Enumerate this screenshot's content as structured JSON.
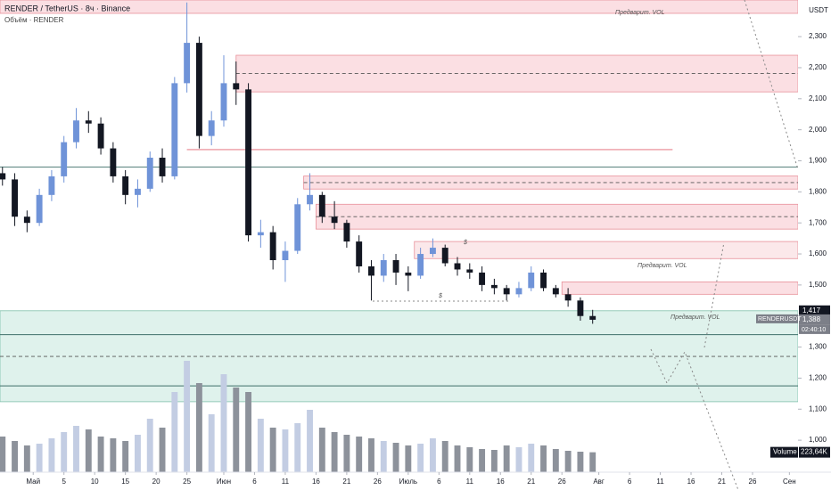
{
  "chart_data": {
    "type": "candlestick",
    "title": "RENDER / TetherUS · 8ч · Binance",
    "subtitle": "Объём · RENDER",
    "currency": "USDT",
    "x": [
      -5,
      -3,
      -1,
      1,
      3,
      5,
      7,
      9,
      11,
      13,
      15,
      17,
      19,
      21,
      23,
      25,
      27,
      29,
      31,
      33,
      35,
      37,
      39,
      41,
      43,
      45,
      47,
      49,
      51,
      53,
      55,
      57,
      59,
      61,
      63,
      65,
      67,
      69,
      71,
      73,
      75,
      77,
      79,
      81,
      83,
      85,
      87,
      89,
      91
    ],
    "open": [
      1860,
      1840,
      1720,
      1700,
      1790,
      1850,
      1960,
      2030,
      2020,
      1940,
      1850,
      1790,
      1810,
      1910,
      1850,
      2150,
      2280,
      1980,
      2030,
      2150,
      2130,
      1660,
      1670,
      1580,
      1610,
      1760,
      1790,
      1720,
      1700,
      1640,
      1560,
      1530,
      1580,
      1540,
      1530,
      1600,
      1620,
      1570,
      1550,
      1540,
      1500,
      1490,
      1470,
      1490,
      1540,
      1490,
      1470,
      1450,
      1400
    ],
    "high": [
      1880,
      1860,
      1740,
      1810,
      1870,
      1980,
      2070,
      2060,
      2040,
      1960,
      1870,
      1840,
      1930,
      1940,
      2170,
      2410,
      2300,
      2060,
      2240,
      2220,
      2150,
      1710,
      1690,
      1640,
      1780,
      1860,
      1800,
      1770,
      1710,
      1660,
      1580,
      1600,
      1600,
      1560,
      1620,
      1650,
      1630,
      1590,
      1570,
      1560,
      1520,
      1500,
      1510,
      1560,
      1550,
      1500,
      1490,
      1460,
      1420
    ],
    "low": [
      1820,
      1690,
      1670,
      1690,
      1770,
      1830,
      1940,
      1990,
      1920,
      1830,
      1760,
      1750,
      1800,
      1830,
      1840,
      2120,
      1940,
      1950,
      2010,
      2080,
      1640,
      1620,
      1550,
      1510,
      1600,
      1740,
      1700,
      1680,
      1620,
      1540,
      1450,
      1510,
      1500,
      1480,
      1520,
      1590,
      1560,
      1530,
      1520,
      1480,
      1470,
      1450,
      1460,
      1480,
      1480,
      1460,
      1430,
      1385,
      1375
    ],
    "close": [
      1840,
      1720,
      1700,
      1790,
      1850,
      1960,
      2030,
      2020,
      1940,
      1850,
      1790,
      1810,
      1910,
      1850,
      2150,
      2280,
      1980,
      2030,
      2150,
      2130,
      1660,
      1670,
      1580,
      1610,
      1760,
      1790,
      1720,
      1700,
      1640,
      1560,
      1530,
      1580,
      1540,
      1530,
      1600,
      1620,
      1570,
      1550,
      1540,
      1500,
      1490,
      1470,
      1490,
      1540,
      1490,
      1470,
      1450,
      1400,
      1388
    ],
    "volume": [
      400,
      350,
      300,
      320,
      380,
      450,
      520,
      480,
      400,
      380,
      350,
      420,
      600,
      500,
      900,
      1250,
      1000,
      650,
      1100,
      950,
      900,
      600,
      500,
      480,
      550,
      700,
      500,
      450,
      420,
      400,
      380,
      350,
      330,
      300,
      320,
      380,
      350,
      300,
      280,
      260,
      250,
      300,
      280,
      320,
      300,
      260,
      240,
      230,
      223.64
    ],
    "volume_ylim": [
      0,
      1500
    ],
    "volume_name": "Volume",
    "volume_last": {
      "value": 223.64,
      "label": "223,64K"
    },
    "up_color": "#6f93d8",
    "down_color": "#131722",
    "volume_up_color": "#c3cde3",
    "volume_down_color": "#8d929b",
    "xlim": [
      -5.4,
      124.4
    ],
    "xticks": [
      {
        "value": 0,
        "label": "Май"
      },
      5,
      10,
      15,
      20,
      25,
      {
        "value": 31,
        "label": "Июн"
      },
      {
        "value": 36,
        "label": "6"
      },
      {
        "value": 41,
        "label": "11"
      },
      {
        "value": 46,
        "label": "16"
      },
      {
        "value": 51,
        "label": "21"
      },
      {
        "value": 56,
        "label": "26"
      },
      {
        "value": 61,
        "label": "Июль"
      },
      {
        "value": 66,
        "label": "6"
      },
      {
        "value": 71,
        "label": "11"
      },
      {
        "value": 76,
        "label": "16"
      },
      {
        "value": 81,
        "label": "21"
      },
      {
        "value": 86,
        "label": "26"
      },
      {
        "value": 92,
        "label": "Авг"
      },
      {
        "value": 97,
        "label": "6"
      },
      {
        "value": 102,
        "label": "11"
      },
      {
        "value": 107,
        "label": "16"
      },
      {
        "value": 112,
        "label": "21"
      },
      {
        "value": 117,
        "label": "26"
      },
      {
        "value": 123,
        "label": "Сен"
      }
    ],
    "ylim": [
      897,
      2418
    ],
    "yticks": [
      {
        "value": 1000,
        "label": "1,000"
      },
      {
        "value": 1100,
        "label": "1,100"
      },
      {
        "value": 1200,
        "label": "1,200"
      },
      {
        "value": 1300,
        "label": "1,300"
      },
      {
        "value": 1400,
        "label": "1,400"
      },
      {
        "value": 1500,
        "label": "1,500"
      },
      {
        "value": 1600,
        "label": "1,600"
      },
      {
        "value": 1700,
        "label": "1,700"
      },
      {
        "value": 1800,
        "label": "1,800"
      },
      {
        "value": 1900,
        "label": "1,900"
      },
      {
        "value": 2000,
        "label": "2,000"
      },
      {
        "value": 2100,
        "label": "2,100"
      },
      {
        "value": 2200,
        "label": "2,200"
      },
      {
        "value": 2300,
        "label": "2,300"
      }
    ],
    "zones": [
      {
        "from": 2375,
        "to": 2418,
        "start": -5.4,
        "color": "#fbdfe3",
        "border": "#e8909a"
      },
      {
        "from": 2122,
        "to": 2240,
        "start": 33,
        "color": "#fbdfe3",
        "border": "#e8909a"
      },
      {
        "from": 1809,
        "to": 1851,
        "start": 44,
        "color": "#fbdfe3",
        "border": "#e8909a"
      },
      {
        "from": 1680,
        "to": 1760,
        "start": 46,
        "color": "#fbdfe3",
        "border": "#e8909a"
      },
      {
        "from": 1585,
        "to": 1640,
        "start": 62,
        "color": "#fbe8ea",
        "border": "#e8909a"
      },
      {
        "from": 1470,
        "to": 1510,
        "start": 86,
        "color": "#fbdfe3",
        "border": "#e8909a"
      },
      {
        "from": 1124,
        "to": 1417,
        "start": -5.4,
        "color": "#dff2ec",
        "border": "#7fbfaa"
      }
    ],
    "levels": [
      {
        "value": 1880,
        "start": -5.4,
        "color": "#3f6f6a",
        "dashed": false
      },
      {
        "value": 1936,
        "start": 25,
        "end": 104,
        "color": "#e0606f",
        "dashed": false
      },
      {
        "value": 1340,
        "start": -5.4,
        "color": "#3f6f6a",
        "dashed": false
      },
      {
        "value": 1175,
        "start": -5.4,
        "color": "#3f6f6a",
        "dashed": false
      },
      {
        "value": 2181,
        "start": 33,
        "color": "#555555",
        "dashed": true
      },
      {
        "value": 1830,
        "start": 44,
        "color": "#555555",
        "dashed": true
      },
      {
        "value": 1720,
        "start": 46,
        "color": "#555555",
        "dashed": true
      },
      {
        "value": 1270,
        "start": -5.4,
        "color": "#555555",
        "dashed": true
      }
    ],
    "price_tags": [
      {
        "value": 1417,
        "label": "1,417",
        "color": "#131722"
      },
      {
        "value": 1388,
        "label": "1,388",
        "color": "#7c7f88"
      }
    ],
    "symbol_tag": "RENDERUSDT",
    "countdown": "02:40:10",
    "annotations": [
      "Предварит. VOL",
      "Предварит. VOL",
      "Предварит. VOL",
      "$",
      "$"
    ]
  }
}
